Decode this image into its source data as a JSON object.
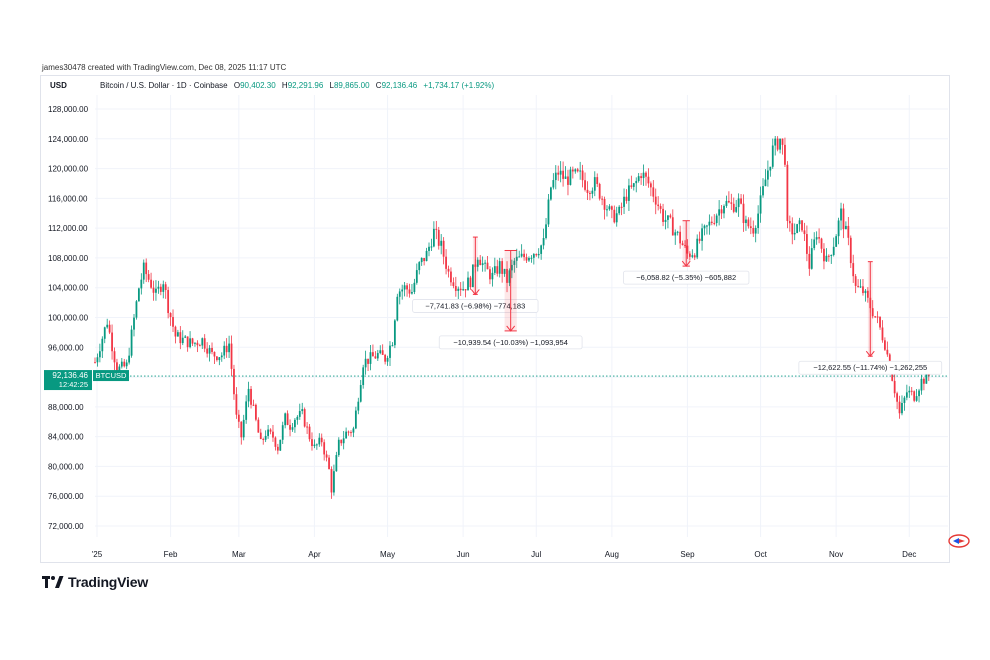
{
  "credit_line": "james30478 created with TradingView.com, Dec 08, 2025 11:17 UTC",
  "header": {
    "currency": "USD",
    "symbol": "Bitcoin / U.S. Dollar · 1D · Coinbase",
    "o_label": "O",
    "o_value": "90,402.30",
    "h_label": "H",
    "h_value": "92,291.96",
    "l_label": "L",
    "l_value": "89,865.00",
    "c_label": "C",
    "c_value": "92,136.46",
    "change": "+1,734.17 (+1.92%)"
  },
  "brand": {
    "name": "TradingView"
  },
  "colors": {
    "up": "#089981",
    "down": "#f23645",
    "measure": "#f23645",
    "grid": "#f0f3fa"
  },
  "chart_data": {
    "type": "candlestick",
    "title": "Bitcoin / U.S. Dollar · 1D · Coinbase",
    "ylim": [
      69000,
      132000
    ],
    "y_ticks": [
      72000,
      76000,
      80000,
      84000,
      88000,
      92000,
      96000,
      100000,
      104000,
      108000,
      112000,
      116000,
      120000,
      124000,
      128000
    ],
    "y_tick_labels": [
      "72,000.00",
      "76,000.00",
      "80,000.00",
      "84,000.00",
      "88,000.00",
      "92,000.00",
      "96,000.00",
      "100,000.00",
      "104,000.00",
      "108,000.00",
      "112,000.00",
      "116,000.00",
      "120,000.00",
      "124,000.00",
      "128,000.00"
    ],
    "x_range_days": [
      0,
      342
    ],
    "x_ticks": [
      {
        "label": "'25",
        "day": 0
      },
      {
        "label": "Feb",
        "day": 31
      },
      {
        "label": "Mar",
        "day": 59
      },
      {
        "label": "Apr",
        "day": 90
      },
      {
        "label": "May",
        "day": 120
      },
      {
        "label": "Jun",
        "day": 151
      },
      {
        "label": "Jul",
        "day": 181
      },
      {
        "label": "Aug",
        "day": 212
      },
      {
        "label": "Sep",
        "day": 243
      },
      {
        "label": "Oct",
        "day": 273
      },
      {
        "label": "Nov",
        "day": 304
      },
      {
        "label": "Dec",
        "day": 334
      }
    ],
    "close_path": [
      [
        0,
        94000
      ],
      [
        5,
        99500
      ],
      [
        9,
        93000
      ],
      [
        13,
        93500
      ],
      [
        18,
        104000
      ],
      [
        20,
        106500
      ],
      [
        23,
        104500
      ],
      [
        25,
        103000
      ],
      [
        28,
        105000
      ],
      [
        30,
        101500
      ],
      [
        33,
        97500
      ],
      [
        36,
        97000
      ],
      [
        40,
        96500
      ],
      [
        44,
        97000
      ],
      [
        48,
        95000
      ],
      [
        52,
        95000
      ],
      [
        55,
        96500
      ],
      [
        58,
        86500
      ],
      [
        60,
        84000
      ],
      [
        63,
        90500
      ],
      [
        66,
        86000
      ],
      [
        68,
        83000
      ],
      [
        70,
        84500
      ],
      [
        73,
        84000
      ],
      [
        75,
        82500
      ],
      [
        78,
        86500
      ],
      [
        80,
        85500
      ],
      [
        82,
        86500
      ],
      [
        85,
        87000
      ],
      [
        88,
        84000
      ],
      [
        90,
        82500
      ],
      [
        93,
        83500
      ],
      [
        96,
        79500
      ],
      [
        97,
        77000
      ],
      [
        100,
        83000
      ],
      [
        103,
        84500
      ],
      [
        106,
        85000
      ],
      [
        110,
        94000
      ],
      [
        113,
        94500
      ],
      [
        116,
        95000
      ],
      [
        119,
        94500
      ],
      [
        122,
        97000
      ],
      [
        124,
        103500
      ],
      [
        127,
        104000
      ],
      [
        130,
        103500
      ],
      [
        133,
        107000
      ],
      [
        136,
        108500
      ],
      [
        139,
        111500
      ],
      [
        142,
        109500
      ],
      [
        145,
        106000
      ],
      [
        148,
        104500
      ],
      [
        151,
        104000
      ],
      [
        154,
        105000
      ],
      [
        157,
        108500
      ],
      [
        160,
        106500
      ],
      [
        163,
        105500
      ],
      [
        166,
        107000
      ],
      [
        169,
        105000
      ],
      [
        172,
        107500
      ],
      [
        175,
        108000
      ],
      [
        178,
        108500
      ],
      [
        181,
        109000
      ],
      [
        184,
        110000
      ],
      [
        187,
        117500
      ],
      [
        190,
        119500
      ],
      [
        193,
        118500
      ],
      [
        196,
        119000
      ],
      [
        199,
        119000
      ],
      [
        202,
        117500
      ],
      [
        205,
        118000
      ],
      [
        209,
        115500
      ],
      [
        212,
        113500
      ],
      [
        215,
        114000
      ],
      [
        218,
        116500
      ],
      [
        221,
        117500
      ],
      [
        224,
        119500
      ],
      [
        227,
        118000
      ],
      [
        230,
        116000
      ],
      [
        233,
        113500
      ],
      [
        236,
        112500
      ],
      [
        239,
        111000
      ],
      [
        243,
        108500
      ],
      [
        246,
        109000
      ],
      [
        249,
        111000
      ],
      [
        252,
        112500
      ],
      [
        255,
        114000
      ],
      [
        258,
        115500
      ],
      [
        261,
        115000
      ],
      [
        264,
        115500
      ],
      [
        267,
        112500
      ],
      [
        270,
        112000
      ],
      [
        272,
        114000
      ],
      [
        275,
        118500
      ],
      [
        278,
        122500
      ],
      [
        281,
        124000
      ],
      [
        283,
        121500
      ],
      [
        284,
        112000
      ],
      [
        287,
        111500
      ],
      [
        290,
        112500
      ],
      [
        293,
        107000
      ],
      [
        296,
        111500
      ],
      [
        300,
        107500
      ],
      [
        303,
        110000
      ],
      [
        306,
        114000
      ],
      [
        309,
        110000
      ],
      [
        312,
        104000
      ],
      [
        315,
        103500
      ],
      [
        318,
        101500
      ],
      [
        321,
        99500
      ],
      [
        324,
        96500
      ],
      [
        327,
        92000
      ],
      [
        330,
        87000
      ],
      [
        333,
        90000
      ],
      [
        336,
        89500
      ],
      [
        339,
        91500
      ],
      [
        342,
        92136
      ]
    ],
    "last_price": 92136.46,
    "last_price_label": "92,136.46",
    "symbol_tag": "BTCUSD",
    "countdown": "12:42:25",
    "measurements": [
      {
        "day_start": 155,
        "day_end": 157,
        "from": 110800,
        "to": 103100,
        "label": "−7,741.83 (−6.98%) −774,183"
      },
      {
        "day_start": 168,
        "day_end": 173,
        "from": 109000,
        "to": 98200,
        "label": "−10,939.54 (−10.03%) −1,093,954"
      },
      {
        "day_start": 241,
        "day_end": 244,
        "from": 113000,
        "to": 106900,
        "label": "−6,058.82 (−5.35%) −605,882"
      },
      {
        "day_start": 317,
        "day_end": 319,
        "from": 107500,
        "to": 94800,
        "label": "−12,622.55 (−11.74%) −1,262,255"
      }
    ]
  }
}
